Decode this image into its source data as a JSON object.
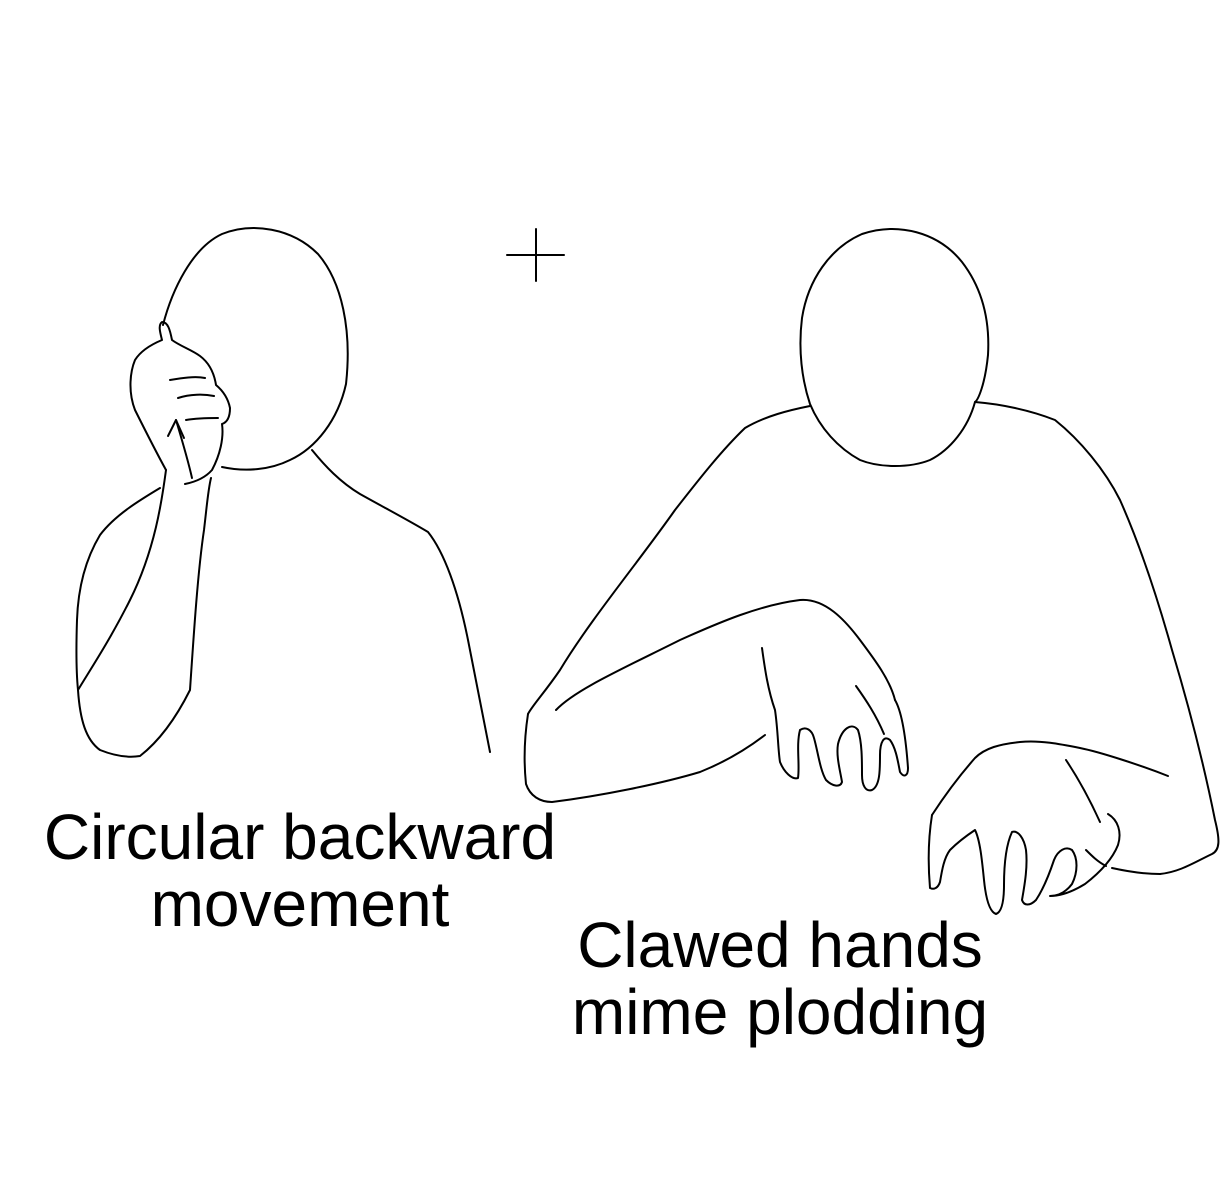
{
  "colors": {
    "background": "#ffffff",
    "ink": "#000000"
  },
  "captions": {
    "left": {
      "line1": "Circular backward",
      "line2": "movement"
    },
    "right": {
      "line1": "Clawed hands",
      "line2": "mime plodding"
    }
  }
}
